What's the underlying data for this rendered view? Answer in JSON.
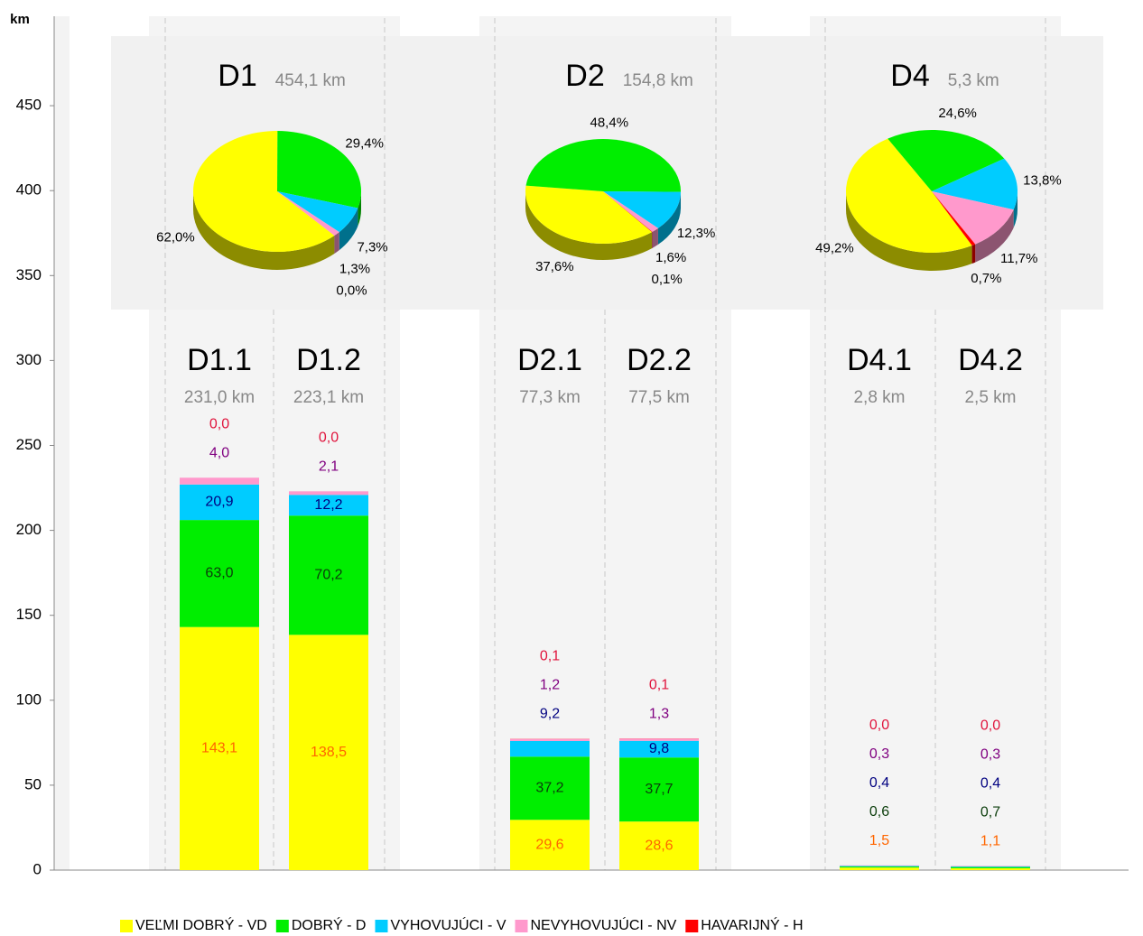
{
  "chart_data": [
    {
      "type": "stacked_bar",
      "y_label": "km",
      "categories": [
        "D1.1",
        "D1.2",
        "D2.1",
        "D2.2",
        "D4.1",
        "D4.2"
      ],
      "category_subtitles": [
        "231,0 km",
        "223,1 km",
        "77,3 km",
        "77,5 km",
        "2,8 km",
        "2,5 km"
      ],
      "ylim": [
        0,
        500
      ],
      "yticks": [
        0,
        50,
        100,
        150,
        200,
        250,
        300,
        350,
        400,
        450
      ],
      "legend": "bottom",
      "series": [
        {
          "name": "VEĽMI DOBRÝ - VD",
          "color": "#ffff00",
          "label_color": "#ff6600",
          "values": [
            143.1,
            138.5,
            29.6,
            28.6,
            1.5,
            1.1
          ],
          "value_labels": [
            "143,1",
            "138,5",
            "29,6",
            "28,6",
            "1,5",
            "1,1"
          ]
        },
        {
          "name": "DOBRÝ - D",
          "color": "#00ee00",
          "label_color": "#0b3d0b",
          "values": [
            63.0,
            70.2,
            37.2,
            37.7,
            0.6,
            0.7
          ],
          "value_labels": [
            "63,0",
            "70,2",
            "37,2",
            "37,7",
            "0,6",
            "0,7"
          ]
        },
        {
          "name": "VYHOVUJÚCI - V",
          "color": "#00ccff",
          "label_color": "#000080",
          "values": [
            20.9,
            12.2,
            9.2,
            9.8,
            0.4,
            0.4
          ],
          "value_labels": [
            "20,9",
            "12,2",
            "9,2",
            "9,8",
            "0,4",
            "0,4"
          ]
        },
        {
          "name": "NEVYHOVUJÚCI - NV",
          "color": "#ff99cc",
          "label_color": "#800080",
          "values": [
            4.0,
            2.1,
            1.2,
            1.3,
            0.3,
            0.3
          ],
          "value_labels": [
            "4,0",
            "2,1",
            "1,2",
            "1,3",
            "0,3",
            "0,3"
          ]
        },
        {
          "name": "HAVARIJNÝ - H",
          "color": "#ff0000",
          "label_color": "#e0143c",
          "values": [
            0.0,
            0.0,
            0.1,
            0.1,
            0.0,
            0.0
          ],
          "value_labels": [
            "0,0",
            "0,0",
            "0,1",
            "0,1",
            "0,0",
            "0,0"
          ]
        }
      ]
    },
    {
      "type": "pie",
      "title": "D1",
      "subtitle": "454,1 km",
      "values": [
        62.0,
        29.4,
        7.3,
        1.3,
        0.0
      ],
      "value_labels": [
        "62,0%",
        "29,4%",
        "7,3%",
        "1,3%",
        "0,0%"
      ],
      "colors": [
        "#ffff00",
        "#00ee00",
        "#00ccff",
        "#ff99cc",
        "#ff0000"
      ]
    },
    {
      "type": "pie",
      "title": "D2",
      "subtitle": "154,8 km",
      "values": [
        37.6,
        48.4,
        12.3,
        1.6,
        0.1
      ],
      "value_labels": [
        "37,6%",
        "48,4%",
        "12,3%",
        "1,6%",
        "0,1%"
      ],
      "colors": [
        "#ffff00",
        "#00ee00",
        "#00ccff",
        "#ff99cc",
        "#ff0000"
      ]
    },
    {
      "type": "pie",
      "title": "D4",
      "subtitle": "5,3 km",
      "values": [
        49.2,
        24.6,
        13.8,
        11.7,
        0.7
      ],
      "value_labels": [
        "49,2%",
        "24,6%",
        "13,8%",
        "11,7%",
        "0,7%"
      ],
      "colors": [
        "#ffff00",
        "#00ee00",
        "#00ccff",
        "#ff99cc",
        "#ff0000"
      ]
    }
  ]
}
